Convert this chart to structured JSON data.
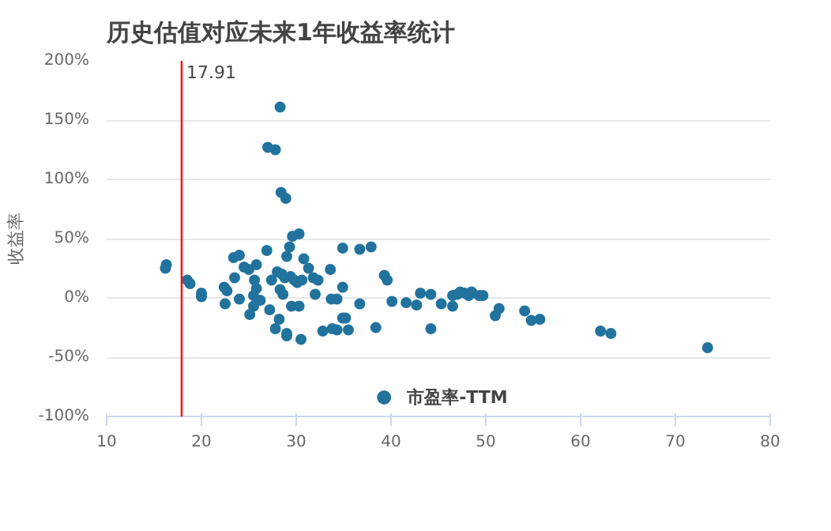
{
  "chart_data": {
    "type": "scatter",
    "title": "历史估值对应未来1年收益率统计",
    "ylabel": "收益率",
    "xlim": [
      10,
      80
    ],
    "xticks": [
      10,
      20,
      30,
      40,
      50,
      60,
      70,
      80
    ],
    "ylim": [
      -100,
      200
    ],
    "yticks": [
      {
        "value": -100,
        "label": "-100%"
      },
      {
        "value": -50,
        "label": "-50%"
      },
      {
        "value": 0,
        "label": "0%"
      },
      {
        "value": 50,
        "label": "50%"
      },
      {
        "value": 100,
        "label": "100%"
      },
      {
        "value": 150,
        "label": "150%"
      },
      {
        "value": 200,
        "label": "200%"
      }
    ],
    "grid": "y",
    "legend": "bottom",
    "marker": "circle",
    "ref_lines": [
      {
        "axis": "x",
        "value": 17.91,
        "label": "17.91",
        "color": "#ff0000"
      }
    ],
    "series": [
      {
        "name": "市盈率-TTM",
        "color": "#21739e",
        "x": [
          16.3,
          16.2,
          18.5,
          18.8,
          20,
          20,
          22.5,
          22.4,
          22.7,
          23.5,
          24,
          23.4,
          24,
          24.5,
          25,
          25.5,
          25.1,
          25.5,
          25.6,
          25.8,
          25.8,
          26.2,
          26.9,
          27.2,
          27.4,
          27.8,
          28.2,
          28,
          28.5,
          28.3,
          28.6,
          29,
          29.3,
          29.6,
          30.3,
          28.3,
          27,
          27.8,
          28.4,
          28.9,
          29,
          29,
          30.5,
          29.5,
          30.3,
          28.8,
          29.4,
          29.8,
          30.1,
          30.6,
          30.8,
          31.3,
          31.8,
          32,
          32.3,
          32.8,
          33.8,
          34.3,
          33.6,
          33.7,
          34.3,
          34.9,
          34.9,
          34.9,
          35.2,
          35.5,
          36.7,
          36.7,
          37.9,
          38.4,
          39.3,
          39.6,
          40.1,
          41.6,
          42.7,
          43.1,
          44.2,
          44.2,
          45.3,
          46.5,
          46.5,
          47,
          47.3,
          47.8,
          48.2,
          48.5,
          49.3,
          49.7,
          51,
          51.4,
          54.1,
          54.8,
          55.7,
          62.1,
          63.2,
          73.4
        ],
        "values": [
          28,
          25,
          15,
          12,
          4,
          1,
          -5,
          9,
          6,
          17,
          -1,
          34,
          36,
          26,
          24,
          -7,
          -14,
          2,
          15,
          8,
          28,
          -2,
          40,
          -10,
          15,
          -26,
          -18,
          22,
          20,
          7,
          3,
          35,
          43,
          52,
          54,
          161,
          127,
          125,
          89,
          84,
          -30,
          -32,
          -35,
          -7,
          -7,
          17,
          18,
          15,
          13,
          15,
          33,
          25,
          17,
          3,
          15,
          -28,
          -26,
          -27,
          24,
          -1,
          -1,
          9,
          42,
          -17,
          -17,
          -27,
          -5,
          41,
          43,
          -25,
          19,
          15,
          -3,
          -4,
          -6,
          4,
          3,
          -26,
          -5,
          -7,
          2,
          3,
          5,
          4,
          2,
          5,
          2,
          2,
          -15,
          -9,
          -11,
          -19,
          -18,
          -28,
          -30,
          -42
        ]
      }
    ]
  }
}
